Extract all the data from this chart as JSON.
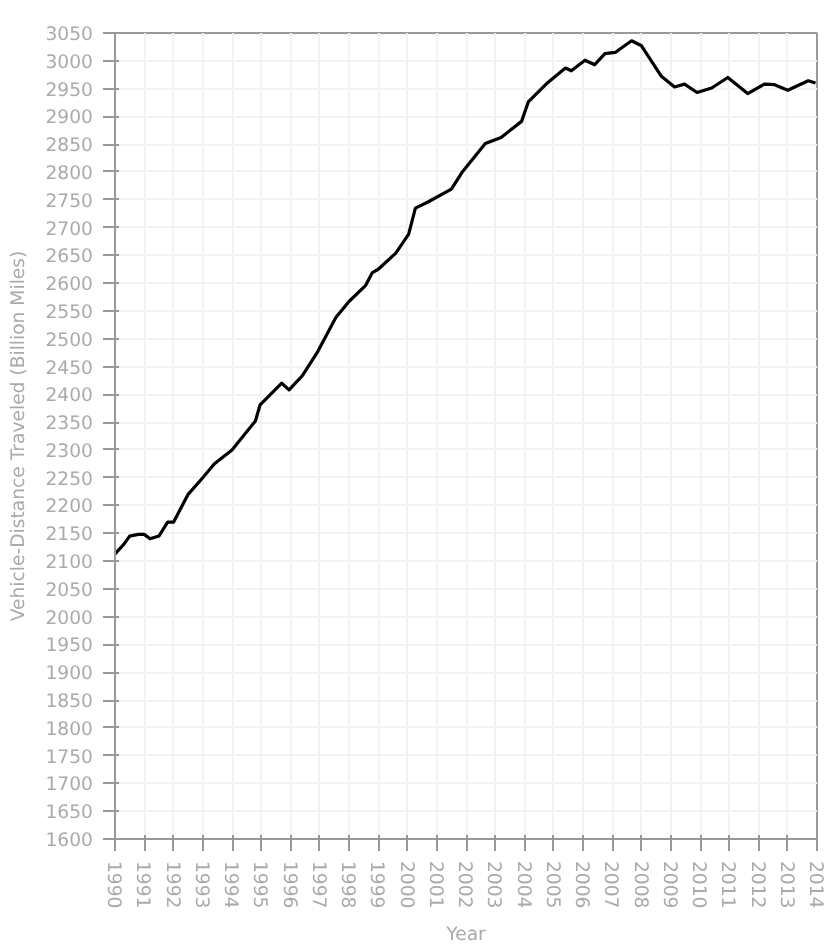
{
  "chart_data": {
    "type": "line",
    "xlabel": "Year",
    "ylabel": "Vehicle-Distance Traveled (Billion Miles)",
    "x": [
      1990,
      1990.3,
      1990.5,
      1990.8,
      1991,
      1991.2,
      1991.5,
      1991.8,
      1992,
      1992.5,
      1993,
      1993.4,
      1994,
      1994.8,
      1994.96,
      1995.3,
      1995.7,
      1995.95,
      1996.4,
      1996.9,
      1997.55,
      1998,
      1998.57,
      1998.8,
      1999,
      1999.6,
      2000.04,
      2000.27,
      2000.7,
      2001.5,
      2001.86,
      2002.66,
      2003.2,
      2003.9,
      2004.13,
      2004.8,
      2005.4,
      2005.6,
      2006.07,
      2006.4,
      2006.75,
      2007.1,
      2007.66,
      2008,
      2008.68,
      2009.13,
      2009.47,
      2009.9,
      2010.4,
      2010.95,
      2011.63,
      2012.2,
      2012.55,
      2013,
      2013.7,
      2013.95
    ],
    "series": [
      {
        "color": "#000000",
        "values": [
          2113,
          2130,
          2145,
          2148,
          2148,
          2140,
          2145,
          2170,
          2170,
          2220,
          2250,
          2275,
          2300,
          2352,
          2381,
          2399,
          2420,
          2408,
          2433,
          2474,
          2538,
          2567,
          2596,
          2619,
          2625,
          2654,
          2688,
          2735,
          2746,
          2769,
          2799,
          2851,
          2862,
          2891,
          2926,
          2961,
          2987,
          2982,
          3001,
          2993,
          3013,
          3015,
          3036,
          3027,
          2972,
          2953,
          2958,
          2943,
          2951,
          2970,
          2941,
          2958,
          2957,
          2947,
          2964,
          2960
        ]
      }
    ],
    "xlim": [
      1990,
      2014
    ],
    "xticks": [
      1990,
      1991,
      1992,
      1993,
      1994,
      1995,
      1996,
      1997,
      1998,
      1999,
      2000,
      2001,
      2002,
      2003,
      2004,
      2005,
      2006,
      2007,
      2008,
      2009,
      2010,
      2011,
      2012,
      2013,
      2014
    ],
    "ylim": [
      1600,
      3050
    ],
    "yticks": [
      1600,
      1650,
      1700,
      1750,
      1800,
      1850,
      1900,
      1950,
      2000,
      2050,
      2100,
      2150,
      2200,
      2250,
      2300,
      2350,
      2400,
      2450,
      2500,
      2550,
      2600,
      2650,
      2700,
      2750,
      2800,
      2850,
      2900,
      2950,
      3000,
      3050
    ],
    "grid": true,
    "line_style": "solid",
    "marker": "none"
  }
}
